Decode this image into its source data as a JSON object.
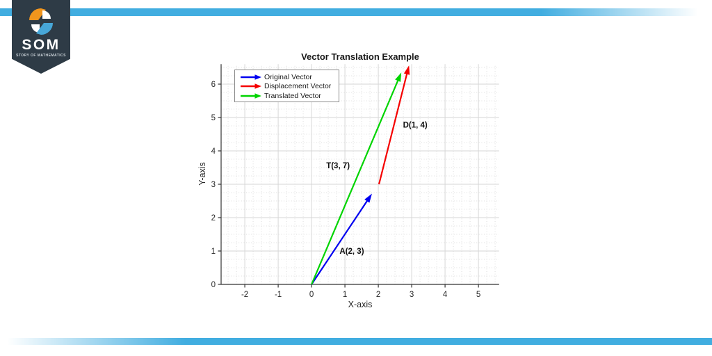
{
  "branding": {
    "logo_text": "SOM",
    "logo_subtext": "STORY OF MATHEMATICS",
    "badge_color": "#2e3b46",
    "stripe_color": "#41ade0",
    "icon_orange": "#f1951d",
    "icon_blue": "#47a7d8",
    "icon_white": "#ffffff"
  },
  "chart_data": {
    "type": "line",
    "subtype": "quiver-vector-plot",
    "title": "Vector Translation Example",
    "xlabel": "X-axis",
    "ylabel": "Y-axis",
    "xlim": [
      -2.71,
      5.62
    ],
    "ylim": [
      0,
      6.6
    ],
    "xticks": [
      -2,
      -1,
      0,
      1,
      2,
      3,
      4,
      5
    ],
    "yticks": [
      0,
      1,
      2,
      3,
      4,
      5,
      6
    ],
    "grid": {
      "major": true,
      "minor": true,
      "minor_step": 0.25
    },
    "legend_position": "top-left",
    "axis_color": "#333333",
    "major_grid_color": "#d6d6d6",
    "minor_grid_color": "#dddddd",
    "label_color": "#111111",
    "tick_label_color": "#262626",
    "vectors": [
      {
        "name": "Original Vector",
        "label": "A(2, 3)",
        "color": "#0000f0",
        "from": [
          0,
          0
        ],
        "vector": [
          2,
          3
        ],
        "tip": [
          1.81,
          2.72
        ],
        "label_pos": [
          0.84,
          0.92
        ]
      },
      {
        "name": "Displacement Vector",
        "label": "D(1, 4)",
        "color": "#f50000",
        "from": [
          2.02,
          3.0
        ],
        "vector": [
          1,
          4
        ],
        "tip": [
          2.92,
          6.56
        ],
        "label_pos": [
          2.74,
          4.7
        ]
      },
      {
        "name": "Translated Vector",
        "label": "T(3, 7)",
        "color": "#00d400",
        "from": [
          0,
          0
        ],
        "vector": [
          3,
          7
        ],
        "tip": [
          2.69,
          6.35
        ],
        "label_pos": [
          0.44,
          3.48
        ]
      }
    ]
  }
}
